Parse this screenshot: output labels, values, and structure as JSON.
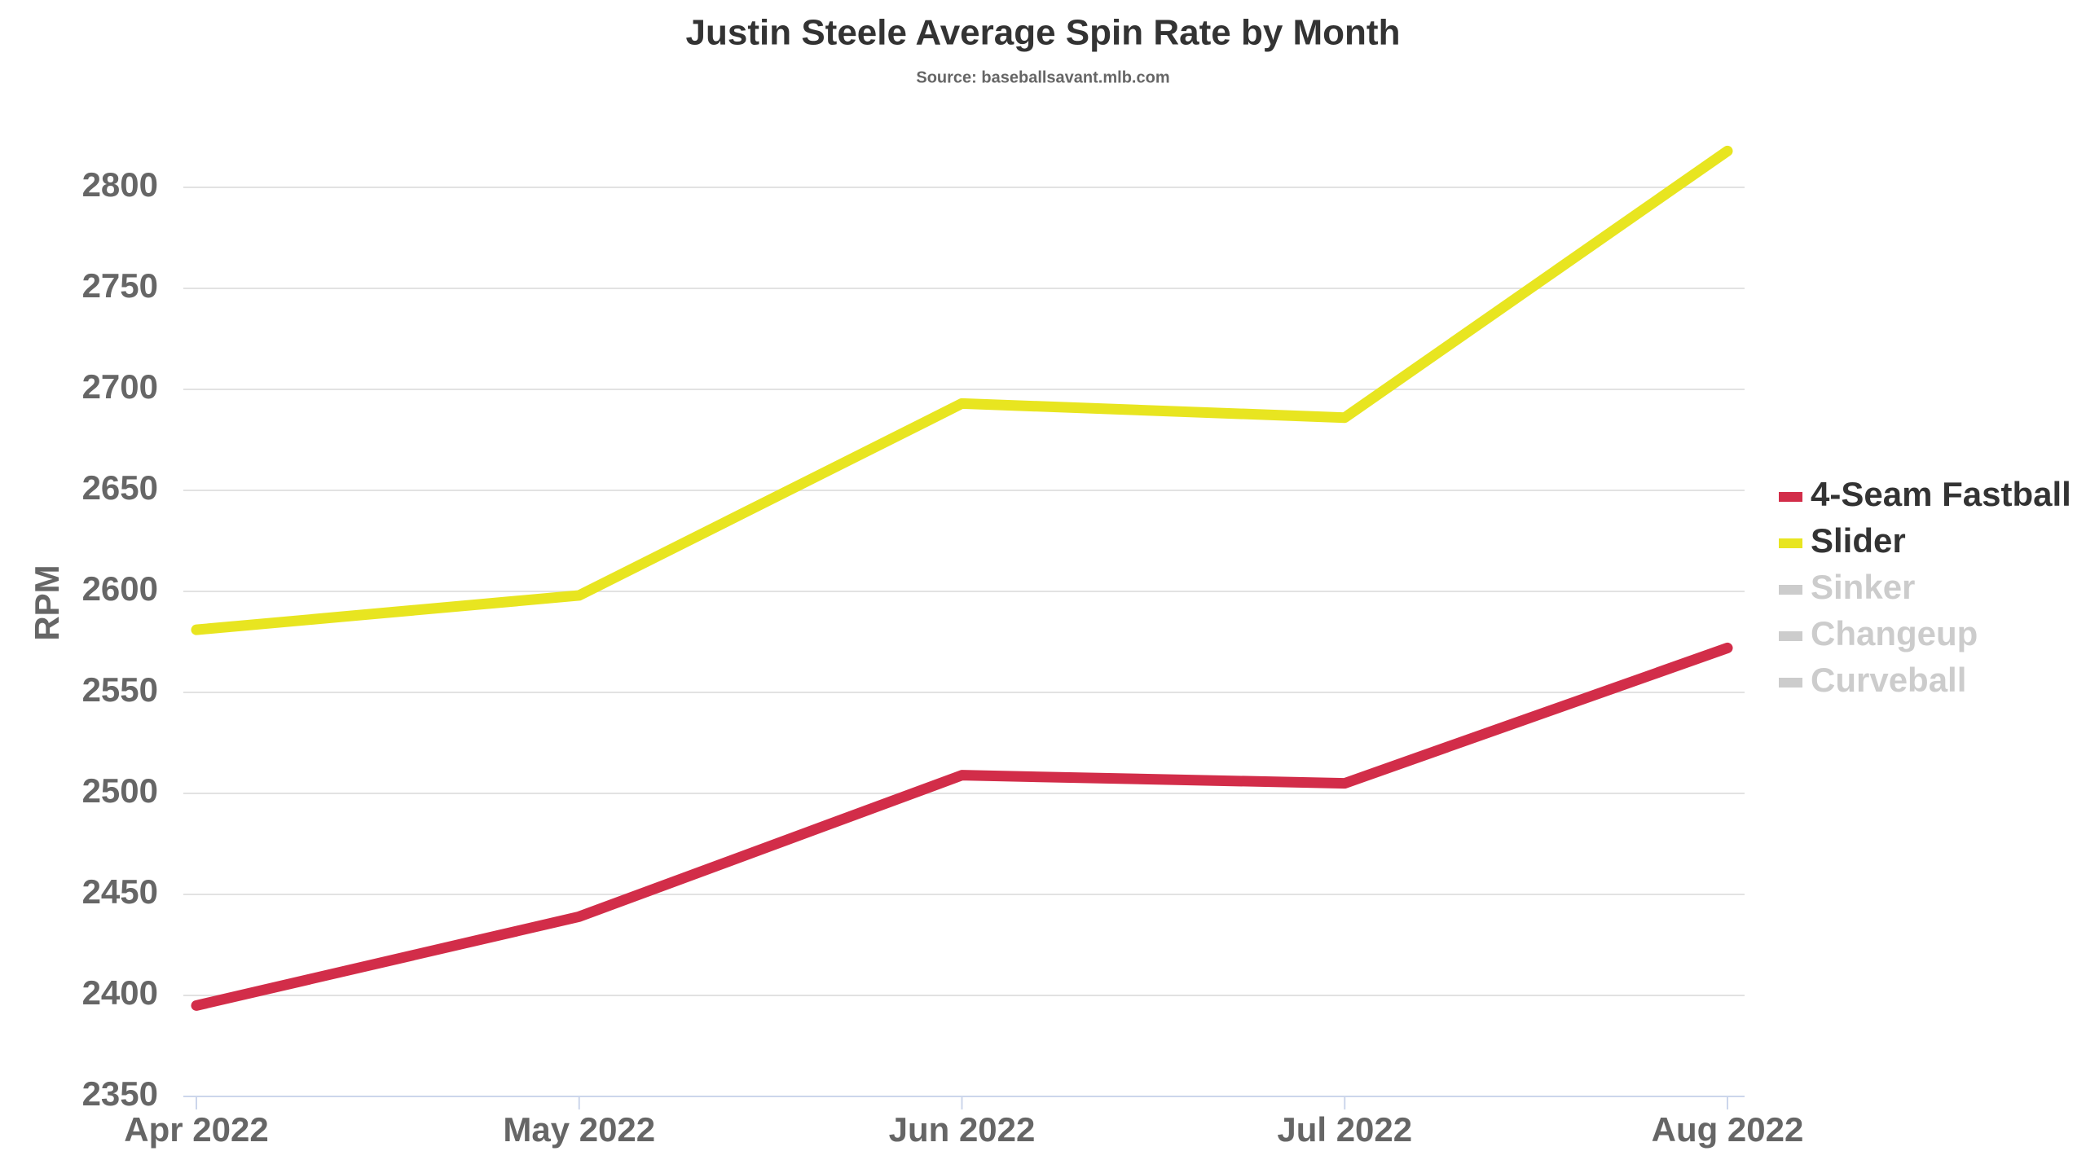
{
  "chart_data": {
    "type": "line",
    "title": "Justin Steele Average Spin Rate by Month",
    "subtitle": "Source: baseballsavant.mlb.com",
    "y_label": "RPM",
    "categories": [
      "Apr 2022",
      "May 2022",
      "Jun 2022",
      "Jul 2022",
      "Aug 2022"
    ],
    "series": [
      {
        "name": "4-Seam Fastball",
        "color": "#d22d49",
        "visible": true,
        "values": [
          2395,
          2439,
          2509,
          2505,
          2572
        ]
      },
      {
        "name": "Slider",
        "color": "#e8e520",
        "visible": true,
        "values": [
          2581,
          2598,
          2693,
          2686,
          2818
        ]
      },
      {
        "name": "Sinker",
        "color": "#cccccc",
        "visible": false,
        "values": [
          null,
          null,
          null,
          null,
          null
        ]
      },
      {
        "name": "Changeup",
        "color": "#cccccc",
        "visible": false,
        "values": [
          null,
          null,
          null,
          null,
          null
        ]
      },
      {
        "name": "Curveball",
        "color": "#cccccc",
        "visible": false,
        "values": [
          null,
          null,
          null,
          null,
          null
        ]
      }
    ],
    "ylim": [
      2350,
      2800
    ],
    "yticks": [
      2350,
      2400,
      2450,
      2500,
      2550,
      2600,
      2650,
      2700,
      2750,
      2800
    ],
    "grid": true,
    "legend": "right"
  }
}
